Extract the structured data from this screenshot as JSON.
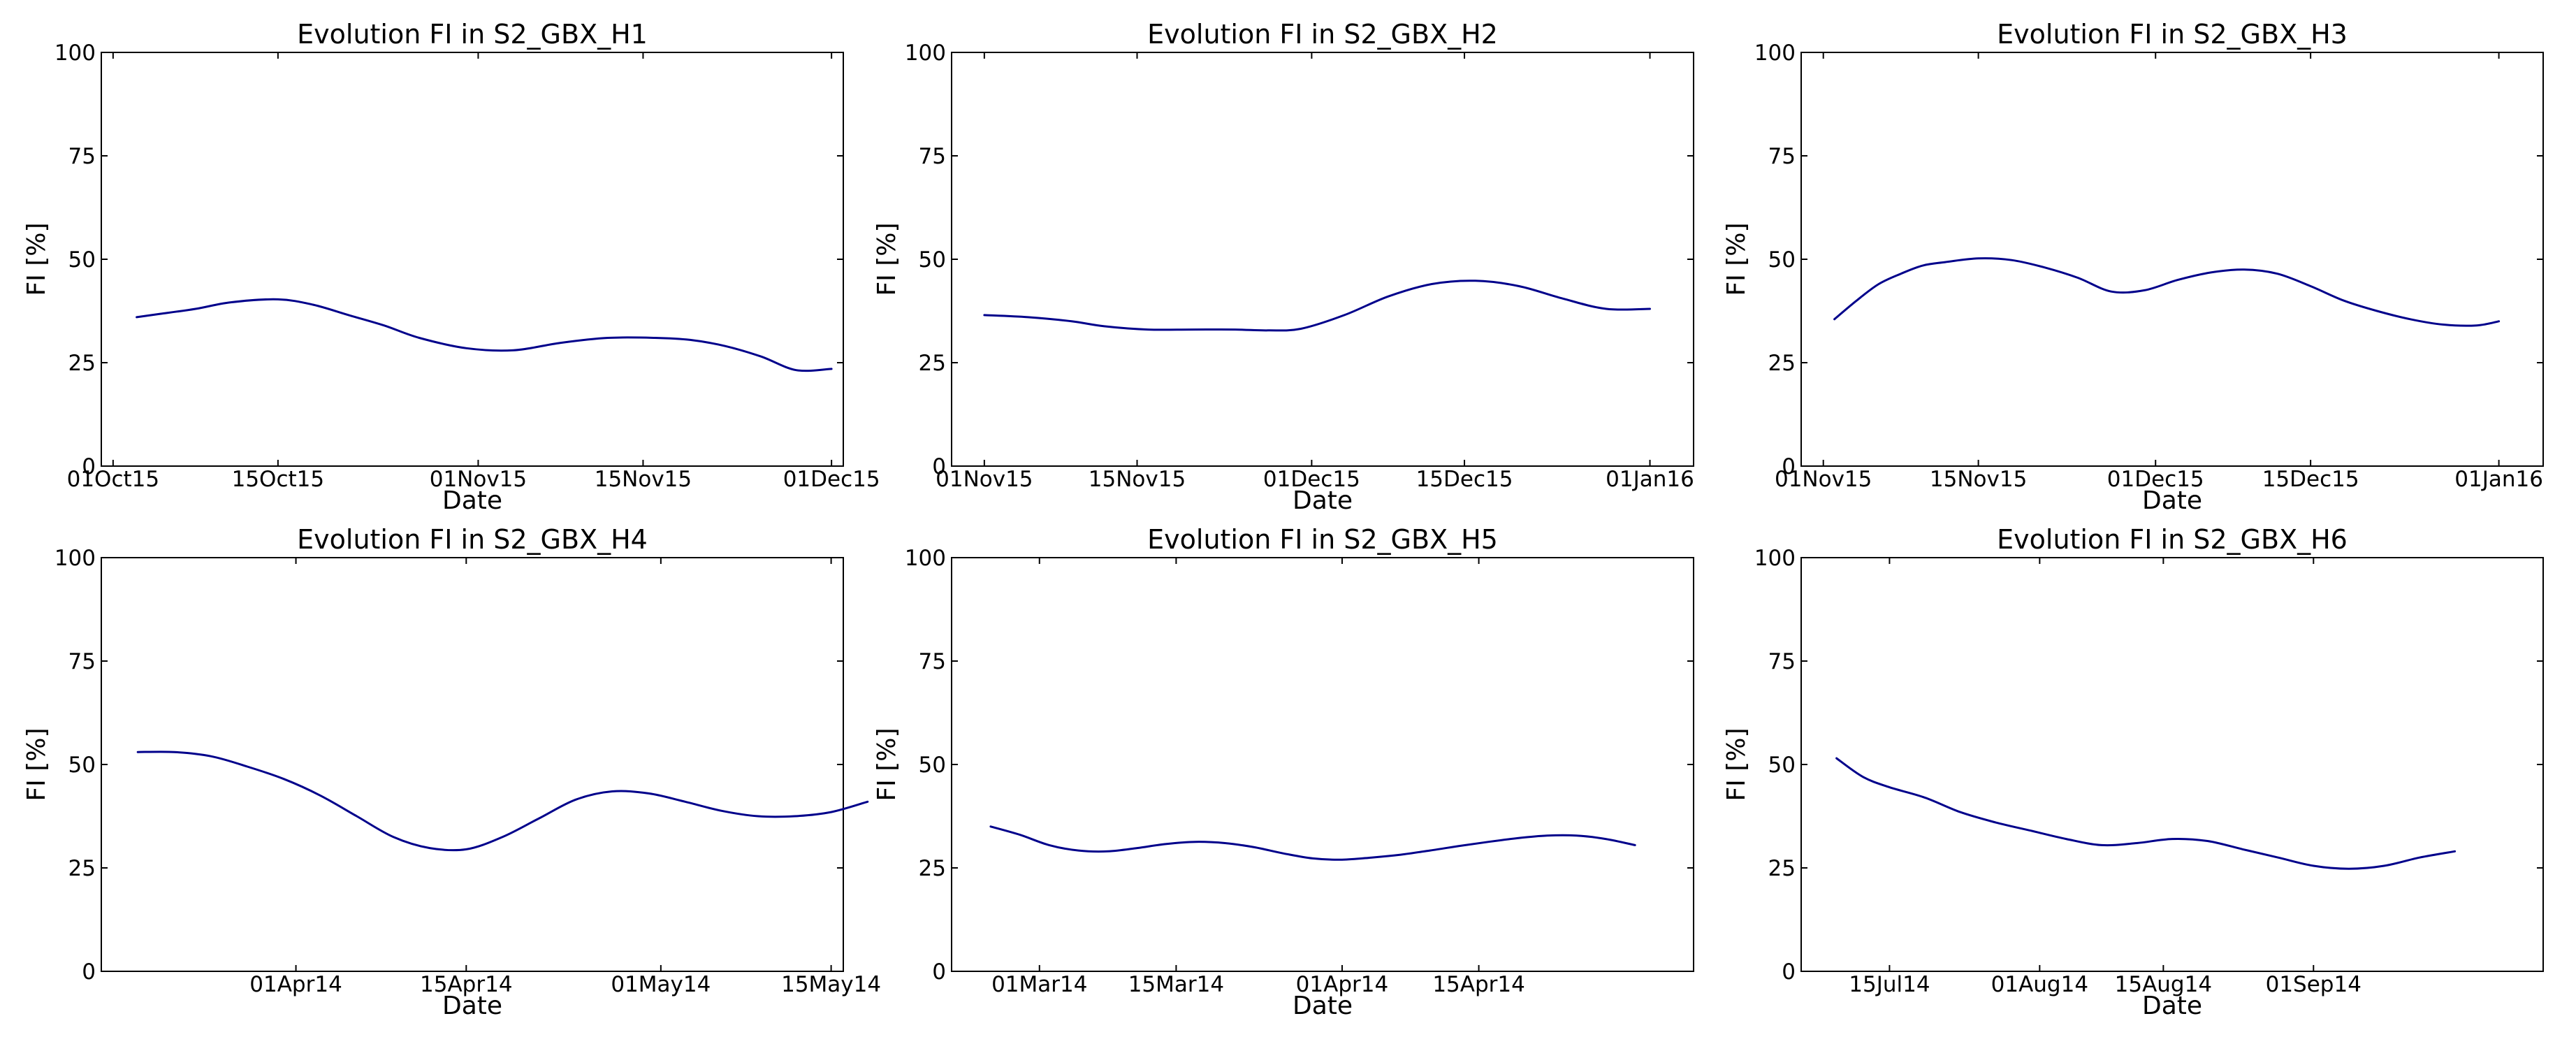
{
  "colors": {
    "line": "#00008b",
    "axes": "#000000",
    "background": "#ffffff"
  },
  "chart_data": [
    {
      "type": "line",
      "title": "Evolution FI in S2_GBX_H1",
      "xlabel": "Date",
      "ylabel": "FI [%]",
      "ylim": [
        0,
        100
      ],
      "yticks": [
        0,
        25,
        50,
        75,
        100
      ],
      "ytick_labels": [
        "0",
        "25",
        "50",
        "75",
        "100"
      ],
      "xlim": [
        -1,
        62
      ],
      "xticks": [
        {
          "x": 0,
          "label": "01Oct15"
        },
        {
          "x": 14,
          "label": "15Oct15"
        },
        {
          "x": 31,
          "label": "01Nov15"
        },
        {
          "x": 45,
          "label": "15Nov15"
        },
        {
          "x": 61,
          "label": "01Dec15"
        }
      ],
      "series": [
        {
          "name": "FI",
          "x": [
            2,
            4,
            7,
            10,
            14,
            17,
            20,
            23,
            26,
            30,
            34,
            38,
            42,
            46,
            49,
            52,
            55,
            58,
            61
          ],
          "y": [
            36,
            36.8,
            38,
            39.6,
            40.3,
            39,
            36.5,
            34,
            31,
            28.5,
            28,
            29.8,
            31,
            31,
            30.5,
            29,
            26.5,
            23.2,
            23.5
          ]
        }
      ]
    },
    {
      "type": "line",
      "title": "Evolution FI in S2_GBX_H2",
      "xlabel": "Date",
      "ylabel": "FI [%]",
      "ylim": [
        0,
        100
      ],
      "yticks": [
        0,
        25,
        50,
        75,
        100
      ],
      "ytick_labels": [
        "0",
        "25",
        "50",
        "75",
        "100"
      ],
      "xlim": [
        -4,
        64
      ],
      "xticks": [
        {
          "x": -1,
          "label": "01Nov15"
        },
        {
          "x": 13,
          "label": "15Nov15"
        },
        {
          "x": 29,
          "label": "01Dec15"
        },
        {
          "x": 43,
          "label": "15Dec15"
        },
        {
          "x": 60,
          "label": "01Jan16"
        }
      ],
      "series": [
        {
          "name": "FI",
          "x": [
            -1,
            3,
            7,
            10,
            14,
            18,
            22,
            25,
            28,
            32,
            36,
            40,
            44,
            48,
            52,
            56,
            60
          ],
          "y": [
            36.5,
            36,
            35,
            33.8,
            33,
            33,
            33,
            32.8,
            33.2,
            36.5,
            41,
            44,
            44.8,
            43.5,
            40.5,
            38,
            38
          ]
        }
      ]
    },
    {
      "type": "line",
      "title": "Evolution FI in S2_GBX_H3",
      "xlabel": "Date",
      "ylabel": "FI [%]",
      "ylim": [
        0,
        100
      ],
      "yticks": [
        0,
        25,
        50,
        75,
        100
      ],
      "ytick_labels": [
        "0",
        "25",
        "50",
        "75",
        "100"
      ],
      "xlim": [
        -3,
        64
      ],
      "xticks": [
        {
          "x": -1,
          "label": "01Nov15"
        },
        {
          "x": 13,
          "label": "15Nov15"
        },
        {
          "x": 29,
          "label": "01Dec15"
        },
        {
          "x": 43,
          "label": "15Dec15"
        },
        {
          "x": 60,
          "label": "01Jan16"
        }
      ],
      "series": [
        {
          "name": "FI",
          "x": [
            0,
            2,
            4,
            6,
            8,
            10,
            13,
            16,
            19,
            22,
            25,
            28,
            31,
            34,
            37,
            40,
            43,
            46,
            49,
            52,
            55,
            58,
            60
          ],
          "y": [
            35.5,
            40,
            44,
            46.5,
            48.5,
            49.3,
            50.2,
            49.8,
            48,
            45.5,
            42.2,
            42.5,
            45,
            46.8,
            47.5,
            46.5,
            43.5,
            40,
            37.5,
            35.5,
            34.2,
            34,
            35
          ]
        }
      ]
    },
    {
      "type": "line",
      "title": "Evolution FI in S2_GBX_H4",
      "xlabel": "Date",
      "ylabel": "FI [%]",
      "ylim": [
        0,
        100
      ],
      "yticks": [
        0,
        25,
        50,
        75,
        100
      ],
      "ytick_labels": [
        "0",
        "25",
        "50",
        "75",
        "100"
      ],
      "xlim": [
        -16,
        45
      ],
      "xticks": [
        {
          "x": 0,
          "label": "01Apr14"
        },
        {
          "x": 14,
          "label": "15Apr14"
        },
        {
          "x": 30,
          "label": "01May14"
        },
        {
          "x": 44,
          "label": "15May14"
        }
      ],
      "series": [
        {
          "name": "FI",
          "x": [
            -13,
            -10,
            -7,
            -4,
            -1,
            2,
            5,
            8,
            11,
            14,
            17,
            20,
            23,
            26,
            29,
            32,
            35,
            38,
            41,
            44,
            47
          ],
          "y": [
            53,
            53,
            52,
            49.5,
            46.5,
            42.5,
            37.5,
            32.5,
            29.8,
            29.5,
            32.5,
            37,
            41.5,
            43.5,
            43,
            41,
            38.8,
            37.5,
            37.5,
            38.5,
            41
          ]
        }
      ]
    },
    {
      "type": "line",
      "title": "Evolution FI in S2_GBX_H5",
      "xlabel": "Date",
      "ylabel": "FI [%]",
      "ylim": [
        0,
        100
      ],
      "yticks": [
        0,
        25,
        50,
        75,
        100
      ],
      "ytick_labels": [
        "0",
        "25",
        "50",
        "75",
        "100"
      ],
      "xlim": [
        -9,
        67
      ],
      "xticks": [
        {
          "x": 0,
          "label": "01Mar14"
        },
        {
          "x": 14,
          "label": "15Mar14"
        },
        {
          "x": 31,
          "label": "01Apr14"
        },
        {
          "x": 45,
          "label": "15Apr14"
        }
      ],
      "series": [
        {
          "name": "FI",
          "x": [
            -5,
            -2,
            1,
            4,
            7,
            10,
            13,
            16,
            19,
            22,
            25,
            28,
            31,
            34,
            37,
            40,
            43,
            46,
            49,
            52,
            55,
            58,
            61
          ],
          "y": [
            35,
            33,
            30.5,
            29.2,
            29,
            29.8,
            30.8,
            31.3,
            31,
            30,
            28.5,
            27.3,
            27,
            27.5,
            28.2,
            29.2,
            30.3,
            31.3,
            32.2,
            32.8,
            32.8,
            32,
            30.5
          ]
        }
      ]
    },
    {
      "type": "line",
      "title": "Evolution FI in S2_GBX_H6",
      "xlabel": "Date",
      "ylabel": "FI [%]",
      "ylim": [
        0,
        100
      ],
      "yticks": [
        0,
        25,
        50,
        75,
        100
      ],
      "ytick_labels": [
        "0",
        "25",
        "50",
        "75",
        "100"
      ],
      "xlim": [
        -10,
        74
      ],
      "xticks": [
        {
          "x": 0,
          "label": "15Jul14"
        },
        {
          "x": 17,
          "label": "01Aug14"
        },
        {
          "x": 31,
          "label": "15Aug14"
        },
        {
          "x": 48,
          "label": "01Sep14"
        }
      ],
      "series": [
        {
          "name": "FI",
          "x": [
            -6,
            -3,
            0,
            4,
            8,
            12,
            16,
            20,
            24,
            28,
            32,
            36,
            40,
            44,
            48,
            52,
            56,
            60,
            64
          ],
          "y": [
            51.5,
            47,
            44.5,
            42,
            38.5,
            36,
            34,
            32,
            30.5,
            31,
            32,
            31.5,
            29.5,
            27.5,
            25.5,
            24.8,
            25.5,
            27.5,
            29
          ]
        }
      ]
    }
  ]
}
